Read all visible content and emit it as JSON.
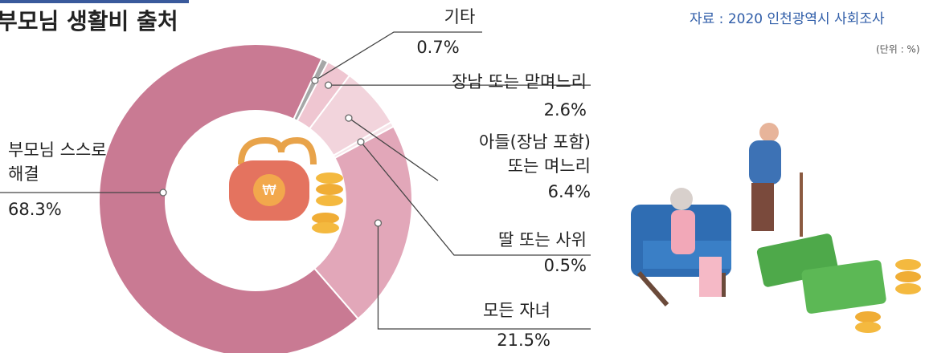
{
  "chart_data": {
    "type": "pie",
    "title": "부모님 생활비 출처",
    "source": "자료 : 2020 인천광역시 사회조사",
    "unit": "(단위 : %)",
    "categories": [
      [
        "기타"
      ],
      [
        "장남 또는 맏며느리"
      ],
      [
        "아들(장남 포함)",
        "또는 며느리"
      ],
      [
        "딸 또는 사위"
      ],
      [
        "모든 자녀"
      ],
      [
        "부모님 스스로",
        "해결"
      ]
    ],
    "values": [
      0.7,
      2.6,
      6.4,
      0.5,
      21.5,
      68.3
    ],
    "value_labels": [
      "0.7%",
      "2.6%",
      "6.4%",
      "0.5%",
      "21.5%",
      "68.3%"
    ],
    "colors": [
      "#a5a7a7",
      "#efc6d1",
      "#f2d4dc",
      "#f7e5ea",
      "#e2a7b9",
      "#c97a93"
    ]
  }
}
